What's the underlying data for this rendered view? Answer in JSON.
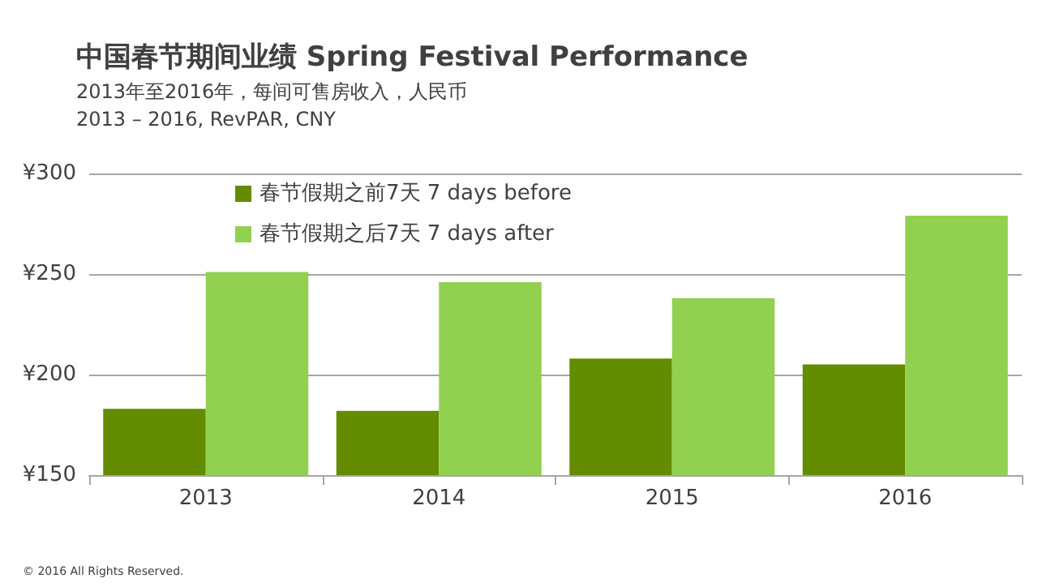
{
  "chart_data": {
    "type": "bar",
    "title": "中国春节期间业绩 Spring Festival Performance",
    "subtitle": "2013年至2016年，每间可售房收入，人民币\n2013 – 2016, RevPAR, CNY",
    "categories": [
      "2013",
      "2014",
      "2015",
      "2016"
    ],
    "series": [
      {
        "name": "春节假期之前7天 7 days before",
        "color": "#638c00",
        "values": [
          183,
          182,
          208,
          205
        ]
      },
      {
        "name": "春节假期之后7天 7 days after",
        "color": "#92d050",
        "values": [
          251,
          246,
          238,
          279
        ]
      }
    ],
    "ylim": [
      150,
      300
    ],
    "yticks": [
      {
        "value": 150,
        "label": "¥150"
      },
      {
        "value": 200,
        "label": "¥200"
      },
      {
        "value": 250,
        "label": "¥250"
      },
      {
        "value": 300,
        "label": "¥300"
      }
    ],
    "grid": "y",
    "legend": "top left",
    "annotations": [
      "© 2016 All Rights Reserved."
    ]
  }
}
